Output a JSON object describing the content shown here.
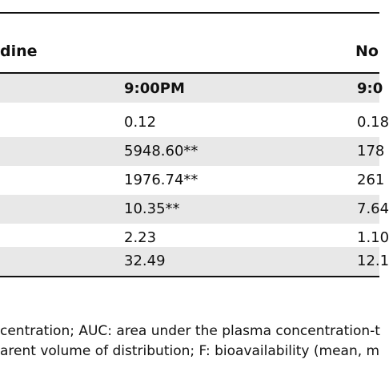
{
  "header": {
    "group_left": "dine",
    "group_right": "No",
    "col1_time": "9:00PM",
    "col2_time": "9:0"
  },
  "rows": [
    {
      "c1": "0.12",
      "c2": "0.18"
    },
    {
      "c1": "5948.60**",
      "c2": "178"
    },
    {
      "c1": "1976.74**",
      "c2": "261"
    },
    {
      "c1": "10.35**",
      "c2": "7.64"
    },
    {
      "c1": "2.23",
      "c2": "1.10"
    },
    {
      "c1": "32.49",
      "c2": "12.1"
    }
  ],
  "footnote": {
    "line1": "centration; AUC: area under the plasma concentration-t",
    "line2": "arent volume of distribution; F: bioavailability (mean, m"
  }
}
